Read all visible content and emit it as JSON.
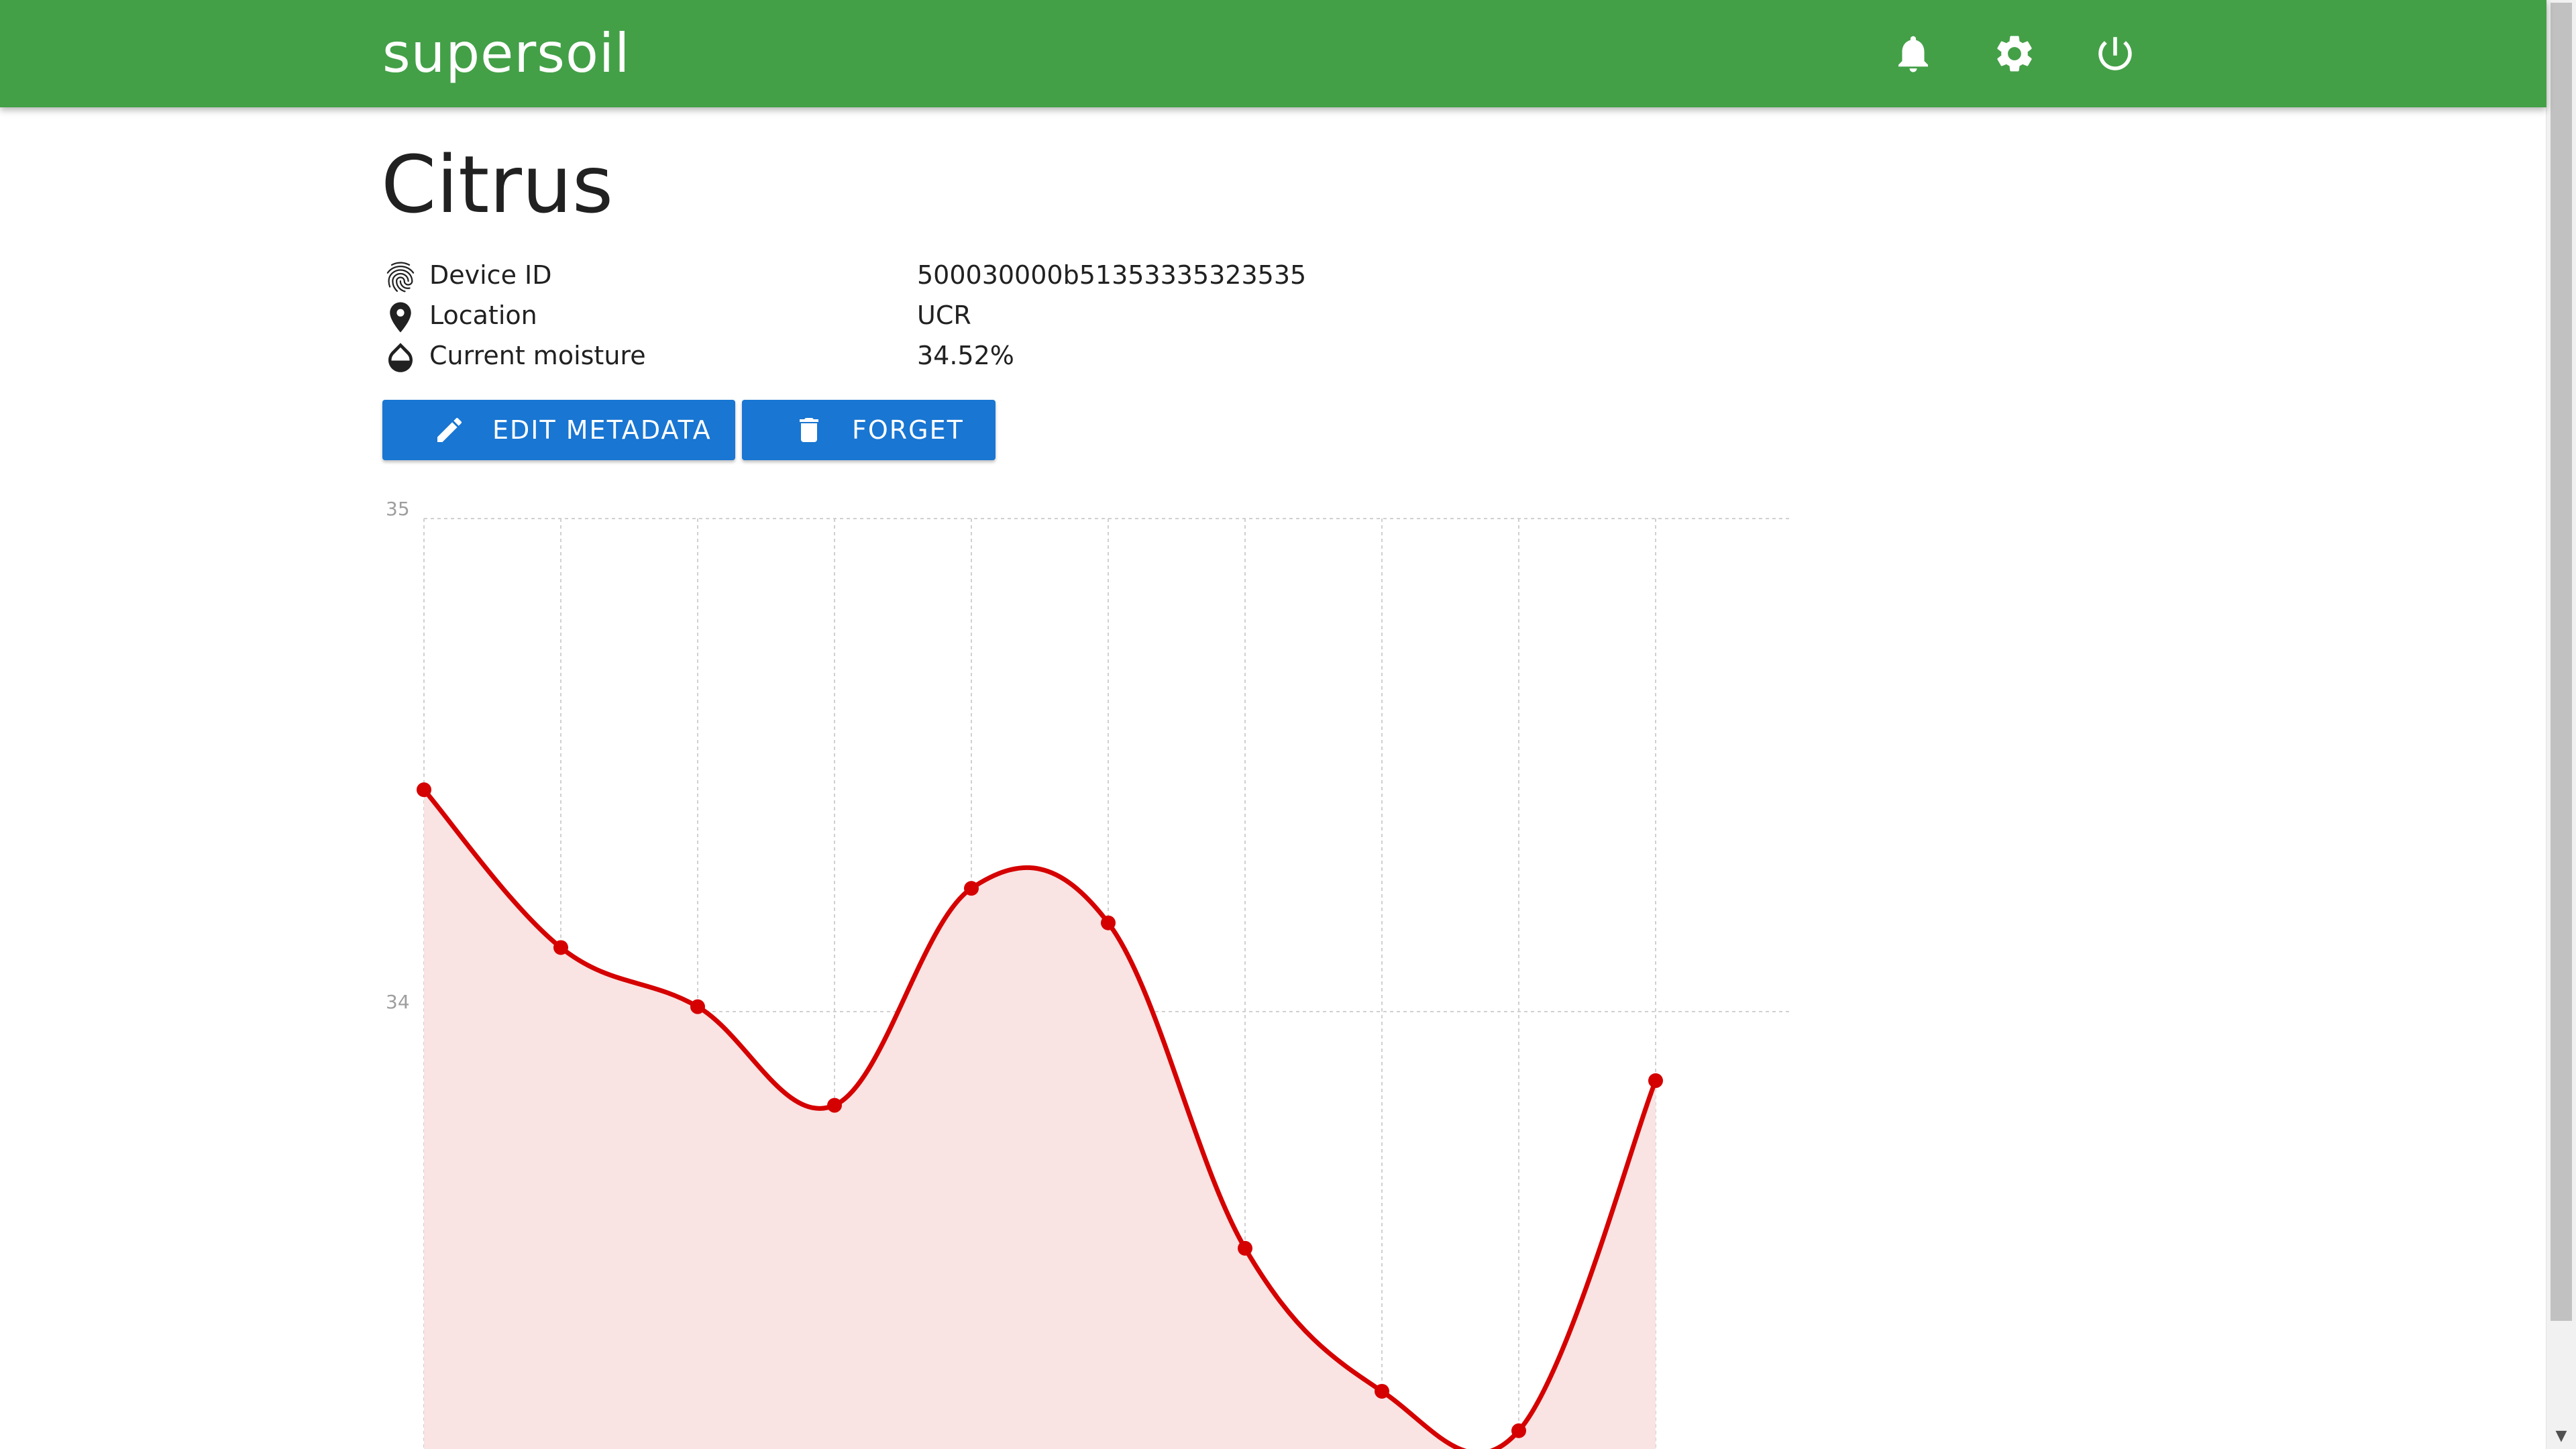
{
  "app": {
    "brand": "supersoil",
    "header_icons": [
      "bell-icon",
      "gear-icon",
      "power-icon"
    ]
  },
  "page": {
    "title": "Citrus"
  },
  "metadata": [
    {
      "icon": "fingerprint-icon",
      "label": "Device ID",
      "value": "500030000b51353335323535"
    },
    {
      "icon": "location-pin-icon",
      "label": "Location",
      "value": "UCR"
    },
    {
      "icon": "water-drop-icon",
      "label": "Current moisture",
      "value": "34.52%"
    }
  ],
  "actions": {
    "edit_label": "EDIT METADATA",
    "edit_icon": "pencil-icon",
    "forget_label": "FORGET",
    "forget_icon": "trash-icon"
  },
  "colors": {
    "appbar": "#43a047",
    "button": "#1976d2",
    "line": "#d50000",
    "area": "#f9e3e3"
  },
  "chart_data": {
    "type": "area",
    "title": "",
    "xlabel": "",
    "ylabel": "",
    "x": [
      1,
      2,
      3,
      4,
      5,
      6,
      7,
      8,
      9,
      10
    ],
    "series": [
      {
        "values": [
          34.45,
          34.13,
          34.01,
          33.81,
          34.25,
          34.18,
          33.52,
          33.23,
          33.15,
          33.86
        ]
      }
    ],
    "y_ticks": [
      "35",
      "34"
    ],
    "ylim_visible": [
      33.12,
      35
    ],
    "grid": true,
    "smooth": true
  }
}
